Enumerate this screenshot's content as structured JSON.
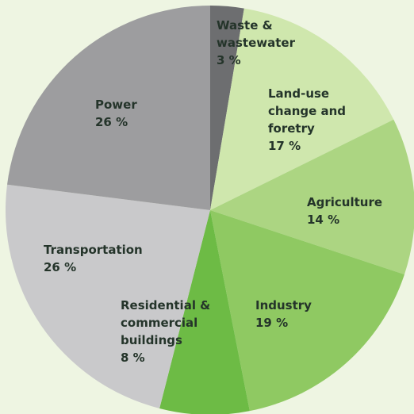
{
  "chart_data": {
    "type": "pie",
    "categories": [
      "Waste & wastewater",
      "Land-use change and foretry",
      "Agriculture",
      "Industry",
      "Residential & commercial buildings",
      "Transportation",
      "Power"
    ],
    "values": [
      3,
      17,
      14,
      19,
      8,
      26,
      26
    ],
    "value_labels": [
      "3 %",
      "17 %",
      "14 %",
      "19 %",
      "8 %",
      "26 %",
      "26 %"
    ],
    "colors": [
      "#6d6e70",
      "#cfe7ad",
      "#acd582",
      "#8fc962",
      "#6dbb45",
      "#c9c9cb",
      "#9d9d9f"
    ]
  }
}
